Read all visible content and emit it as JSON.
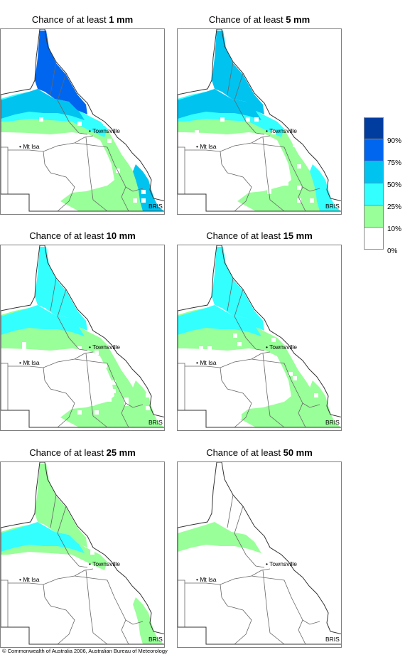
{
  "panels": [
    {
      "title_prefix": "Chance of at least ",
      "amount": "1 mm"
    },
    {
      "title_prefix": "Chance of at least ",
      "amount": "5 mm"
    },
    {
      "title_prefix": "Chance of at least ",
      "amount": "10 mm"
    },
    {
      "title_prefix": "Chance of at least ",
      "amount": "15 mm"
    },
    {
      "title_prefix": "Chance of at least ",
      "amount": "25 mm"
    },
    {
      "title_prefix": "Chance of at least ",
      "amount": "50 mm"
    }
  ],
  "places": {
    "townsville": "Townsville",
    "mt_isa": "Mt Isa",
    "brisbane": "BRIS"
  },
  "legend": {
    "colors": [
      "#003d9e",
      "#0066f0",
      "#00c3f0",
      "#33ffff",
      "#99ff99",
      "#ffffff"
    ],
    "labels": [
      "90%",
      "75%",
      "50%",
      "25%",
      "10%",
      "0%"
    ]
  },
  "copyright": "© Commonwealth of Australia 2006, Australian Bureau of Meteorology"
}
